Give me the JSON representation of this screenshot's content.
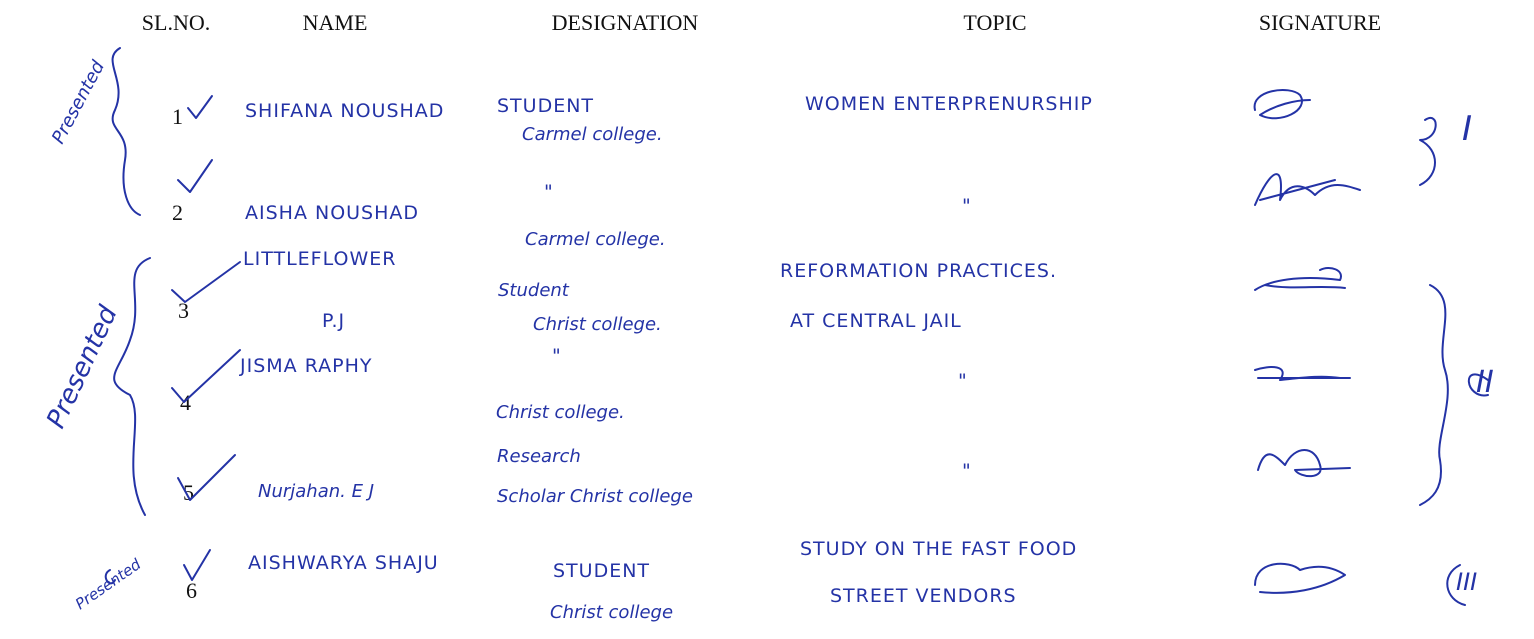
{
  "headers": [
    "SL.NO.",
    "NAME",
    "DESIGNATION",
    "TOPIC",
    "SIGNATURE"
  ],
  "rows": [
    {
      "sl": "1",
      "name": [
        "SHIFANA NOUSHAD"
      ],
      "designation": [
        "STUDENT",
        "Carmel college."
      ],
      "topic": [
        "WOMEN ENTERPRENURSHIP"
      ]
    },
    {
      "sl": "2",
      "name": [
        "AISHA NOUSHAD"
      ],
      "designation": [
        "\"",
        "Carmel college."
      ],
      "topic": [
        "\""
      ]
    },
    {
      "sl": "3",
      "name": [
        "LITTLEFLOWER",
        "P.J"
      ],
      "designation": [
        "Student",
        "Christ college."
      ],
      "topic": [
        "REFORMATION PRACTICES.",
        "AT CENTRAL JAIL"
      ]
    },
    {
      "sl": "4",
      "name": [
        "JISMA RAPHY"
      ],
      "designation": [
        "\"",
        "Christ college."
      ],
      "topic": [
        "\""
      ]
    },
    {
      "sl": "5",
      "name": [
        "Nurjahan. E J"
      ],
      "designation": [
        "Research",
        "Scholar Christ college"
      ],
      "topic": [
        "\""
      ]
    },
    {
      "sl": "6",
      "name": [
        "AISHWARYA SHAJU"
      ],
      "designation": [
        "STUDENT",
        "Christ college"
      ],
      "topic": [
        "STUDY ON THE FAST FOOD",
        "STREET VENDORS"
      ]
    }
  ],
  "groups": [
    {
      "label": "Presented",
      "number": "I"
    },
    {
      "label": "Presented",
      "number": "II"
    },
    {
      "label": "Presented",
      "number": "III"
    }
  ]
}
